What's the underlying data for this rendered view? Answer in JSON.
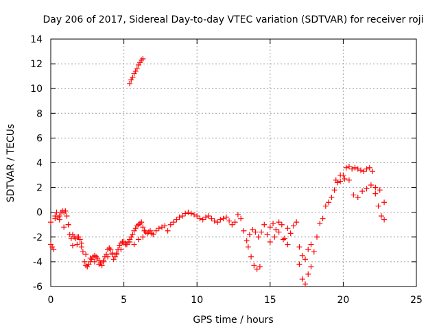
{
  "chart_data": {
    "type": "scatter",
    "title": "Day 206 of 2017, Sidereal Day-to-day VTEC variation (SDTVAR) for receiver roji",
    "xlabel": "GPS time / hours",
    "ylabel": "SDTVAR / TECUs",
    "xlim": [
      0,
      25
    ],
    "ylim": [
      -6,
      14
    ],
    "xticks": [
      "0",
      "5",
      "10",
      "15",
      "20",
      "25"
    ],
    "yticks": [
      "-6",
      "-4",
      "-2",
      "0",
      "2",
      "4",
      "6",
      "8",
      "10",
      "12",
      "14"
    ],
    "grid": true,
    "marker": "plus",
    "color": "#ff0000",
    "series": [
      {
        "name": "SDTVAR",
        "x": [
          0.0,
          0.1,
          0.2,
          0.3,
          0.4,
          0.5,
          0.6,
          0.7,
          0.8,
          0.9,
          1.0,
          1.1,
          1.2,
          1.3,
          1.4,
          1.5,
          1.6,
          1.7,
          1.8,
          1.9,
          2.0,
          2.1,
          2.2,
          2.3,
          2.4,
          2.5,
          2.6,
          2.7,
          2.8,
          2.9,
          3.0,
          3.1,
          3.2,
          3.3,
          3.4,
          3.5,
          3.6,
          3.7,
          3.8,
          3.9,
          4.0,
          4.1,
          4.2,
          4.3,
          4.4,
          4.5,
          4.6,
          4.7,
          4.8,
          4.9,
          5.0,
          5.1,
          5.2,
          5.3,
          5.4,
          5.5,
          5.6,
          5.7,
          5.8,
          5.9,
          6.0,
          6.1,
          6.2,
          6.3,
          6.4,
          6.5,
          6.6,
          6.7,
          6.8,
          6.9,
          7.0,
          7.2,
          7.4,
          7.6,
          7.8,
          8.0,
          8.2,
          8.4,
          8.6,
          8.8,
          9.0,
          9.2,
          9.4,
          9.6,
          9.8,
          10.0,
          10.2,
          10.4,
          10.6,
          10.8,
          11.0,
          11.2,
          11.4,
          11.6,
          11.8,
          12.0,
          12.2,
          12.4,
          12.6,
          12.8,
          13.0,
          13.2,
          13.4,
          13.6,
          13.8,
          14.0,
          14.2,
          14.4,
          14.6,
          14.8,
          15.0,
          15.2,
          15.4,
          15.6,
          15.8,
          16.0,
          16.2,
          16.4,
          16.6,
          16.8,
          17.0,
          17.2,
          17.4,
          17.6,
          17.8,
          18.0,
          18.2,
          18.4,
          18.6,
          18.8,
          19.0,
          19.2,
          19.4,
          19.6,
          19.8,
          20.0,
          20.2,
          20.4,
          20.6,
          20.8,
          21.0,
          21.2,
          21.4,
          21.6,
          21.8,
          22.0,
          22.2,
          22.4,
          22.6,
          22.8,
          5.4,
          5.5,
          5.6,
          5.7,
          5.8,
          5.9,
          6.0,
          6.1,
          6.2,
          6.3,
          0.0,
          0.3,
          0.6,
          0.9,
          1.2,
          1.5,
          1.8,
          2.1,
          2.4,
          2.7,
          3.0,
          3.3,
          3.6,
          3.9,
          4.2,
          4.5,
          4.8,
          5.1,
          5.4,
          5.7,
          6.0,
          6.3,
          13.5,
          13.7,
          13.9,
          14.1,
          14.3,
          15.0,
          15.3,
          15.6,
          15.9,
          16.2,
          17.0,
          17.2,
          17.4,
          17.6,
          17.8,
          19.5,
          19.8,
          20.1,
          20.4,
          20.7,
          21.0,
          21.3,
          21.6,
          21.9,
          22.2,
          22.5,
          22.8
        ],
        "y": [
          -2.6,
          -2.8,
          -3.0,
          -0.5,
          0.0,
          -0.4,
          -0.3,
          0.0,
          0.1,
          0.0,
          0.1,
          -0.3,
          -1.0,
          -1.8,
          -2.1,
          -1.8,
          -2.0,
          -2.1,
          -2.0,
          -2.0,
          -2.2,
          -2.5,
          -3.2,
          -4.0,
          -4.3,
          -4.4,
          -4.2,
          -4.0,
          -3.8,
          -3.6,
          -3.5,
          -3.6,
          -3.7,
          -3.9,
          -4.1,
          -4.3,
          -4.0,
          -3.6,
          -3.4,
          -3.0,
          -2.9,
          -3.0,
          -3.4,
          -3.8,
          -3.6,
          -3.3,
          -3.0,
          -2.7,
          -2.5,
          -2.4,
          -2.4,
          -2.5,
          -2.6,
          -2.4,
          -2.2,
          -2.0,
          -1.8,
          -1.5,
          -1.3,
          -1.1,
          -1.0,
          -0.9,
          -0.8,
          -1.2,
          -1.5,
          -1.6,
          -1.7,
          -1.6,
          -1.5,
          -1.7,
          -1.8,
          -1.5,
          -1.3,
          -1.2,
          -1.1,
          -1.5,
          -1.0,
          -0.8,
          -0.6,
          -0.4,
          -0.3,
          -0.1,
          0.0,
          -0.1,
          -0.2,
          -0.3,
          -0.5,
          -0.6,
          -0.4,
          -0.3,
          -0.5,
          -0.7,
          -0.8,
          -0.6,
          -0.5,
          -0.4,
          -0.7,
          -1.0,
          -0.8,
          -0.2,
          -0.5,
          -1.5,
          -2.3,
          -1.8,
          -1.4,
          -1.6,
          -2.0,
          -1.6,
          -1.0,
          -1.8,
          -1.2,
          -0.9,
          -1.4,
          -0.8,
          -1.0,
          -2.1,
          -1.3,
          -1.7,
          -1.1,
          -0.8,
          -2.8,
          -3.5,
          -3.8,
          -3.0,
          -2.6,
          -3.2,
          -2.0,
          -0.9,
          -0.5,
          0.5,
          0.8,
          1.2,
          1.8,
          2.4,
          2.5,
          3.0,
          3.6,
          3.7,
          3.5,
          3.6,
          3.5,
          3.4,
          3.3,
          3.5,
          3.6,
          3.3,
          1.5,
          0.5,
          -0.3,
          0.8,
          10.4,
          10.7,
          10.9,
          11.2,
          11.4,
          11.6,
          11.9,
          12.1,
          12.3,
          12.4,
          -0.8,
          -0.3,
          -0.6,
          -1.2,
          -1.0,
          -2.7,
          -2.6,
          -2.8,
          -3.4,
          -3.7,
          -4.0,
          -4.2,
          -3.9,
          -3.6,
          -3.3,
          -3.4,
          -3.0,
          -2.6,
          -2.4,
          -2.6,
          -2.2,
          -2.0,
          -2.8,
          -3.6,
          -4.3,
          -4.6,
          -4.4,
          -2.4,
          -2.0,
          -1.6,
          -2.2,
          -2.6,
          -4.2,
          -5.4,
          -5.8,
          -5.0,
          -4.4,
          2.6,
          3.0,
          2.7,
          2.6,
          1.4,
          1.2,
          1.7,
          1.9,
          2.2,
          2.0,
          1.8,
          -0.6
        ]
      }
    ]
  }
}
